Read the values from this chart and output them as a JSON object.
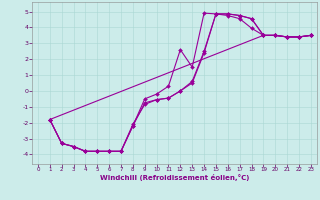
{
  "xlabel": "Windchill (Refroidissement éolien,°C)",
  "bg_color": "#ccecea",
  "grid_color": "#aad8d4",
  "line_color": "#990099",
  "marker": "D",
  "markersize": 2.0,
  "linewidth": 0.8,
  "xlim": [
    -0.5,
    23.5
  ],
  "ylim": [
    -4.6,
    5.6
  ],
  "xticks": [
    0,
    1,
    2,
    3,
    4,
    5,
    6,
    7,
    8,
    9,
    10,
    11,
    12,
    13,
    14,
    15,
    16,
    17,
    18,
    19,
    20,
    21,
    22,
    23
  ],
  "yticks": [
    -4,
    -3,
    -2,
    -1,
    0,
    1,
    2,
    3,
    4,
    5
  ],
  "lines": [
    {
      "x": [
        1,
        2,
        3,
        4,
        5,
        6,
        7,
        8,
        9,
        10,
        11,
        12,
        13,
        14,
        15,
        16,
        17,
        18,
        19,
        20,
        21,
        22,
        23
      ],
      "y": [
        -1.8,
        -3.3,
        -3.5,
        -3.8,
        -3.8,
        -3.8,
        -3.8,
        -2.2,
        -0.5,
        -0.2,
        0.3,
        2.6,
        1.5,
        4.9,
        4.85,
        4.75,
        4.55,
        3.95,
        3.5,
        3.5,
        3.4,
        3.4,
        3.5
      ]
    },
    {
      "x": [
        1,
        2,
        3,
        4,
        5,
        6,
        7,
        8,
        9,
        10,
        11,
        12,
        13,
        14,
        15,
        16,
        17,
        18,
        19,
        20,
        21,
        22,
        23
      ],
      "y": [
        -1.8,
        -3.3,
        -3.5,
        -3.8,
        -3.8,
        -3.8,
        -3.8,
        -2.2,
        -0.75,
        -0.55,
        -0.45,
        0.0,
        0.6,
        2.5,
        4.85,
        4.85,
        4.75,
        4.55,
        3.5,
        3.5,
        3.4,
        3.4,
        3.5
      ]
    },
    {
      "x": [
        1,
        2,
        3,
        4,
        5,
        6,
        7,
        8,
        9,
        10,
        11,
        12,
        13,
        14,
        15,
        16,
        17,
        18,
        19,
        20,
        21,
        22,
        23
      ],
      "y": [
        -1.8,
        -3.3,
        -3.5,
        -3.8,
        -3.8,
        -3.8,
        -3.8,
        -2.1,
        -0.85,
        -0.55,
        -0.45,
        0.0,
        0.5,
        2.4,
        4.85,
        4.85,
        4.75,
        4.55,
        3.5,
        3.5,
        3.4,
        3.4,
        3.5
      ]
    },
    {
      "x": [
        1,
        19,
        20,
        21,
        22,
        23
      ],
      "y": [
        -1.8,
        3.5,
        3.5,
        3.4,
        3.4,
        3.5
      ]
    }
  ]
}
